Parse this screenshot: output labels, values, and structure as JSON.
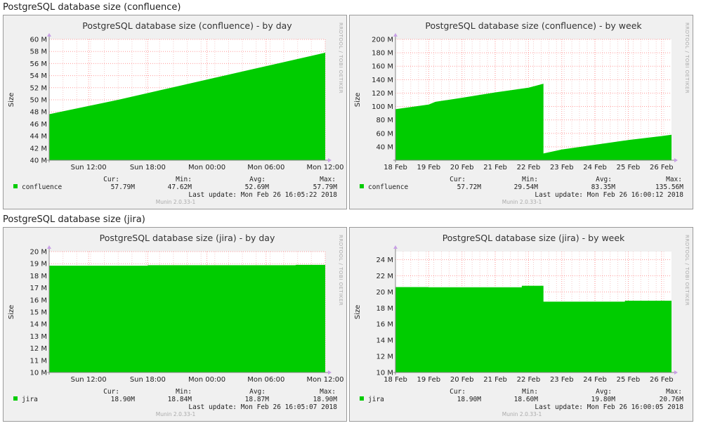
{
  "sections": [
    {
      "title": "PostgreSQL database size (confluence)"
    },
    {
      "title": "PostgreSQL database size (jira)"
    }
  ],
  "common": {
    "ylabel": "Size",
    "side_text": "RRDTOOL / TOBI OETIKER",
    "munin": "Munin 2.0.33-1",
    "colors": {
      "fill": "#00cc00",
      "grid": "#ff9999",
      "panel_bg": "#f0f0f0",
      "plot_bg": "#ffffff"
    }
  },
  "chart_data": [
    {
      "type": "area",
      "title": "PostgreSQL database size (confluence) - by day",
      "xlabel": "",
      "ylabel": "Size",
      "ylim": [
        40,
        60
      ],
      "yticks": [
        40,
        42,
        44,
        46,
        48,
        50,
        52,
        54,
        56,
        58,
        60
      ],
      "ytick_labels": [
        "40 M",
        "42 M",
        "44 M",
        "46 M",
        "48 M",
        "50 M",
        "52 M",
        "54 M",
        "56 M",
        "58 M",
        "60 M"
      ],
      "xlim": [
        0,
        28
      ],
      "xticks": [
        4,
        10,
        16,
        22,
        28
      ],
      "xtick_labels": [
        "Sun 12:00",
        "Sun 18:00",
        "Mon 00:00",
        "Mon 06:00",
        "Mon 12:00"
      ],
      "series": [
        {
          "name": "confluence",
          "x": [
            0,
            7,
            14,
            21,
            28
          ],
          "values": [
            47.62,
            50.0,
            52.6,
            55.2,
            57.79
          ]
        }
      ],
      "legend": {
        "name": "confluence",
        "cur": "57.79M",
        "min": "47.62M",
        "avg": "52.69M",
        "max": "57.79M"
      },
      "last_update": "Mon Feb 26 16:05:22 2018",
      "grid": true
    },
    {
      "type": "area",
      "title": "PostgreSQL database size (confluence) - by week",
      "xlabel": "",
      "ylabel": "Size",
      "ylim": [
        20,
        200
      ],
      "yticks": [
        40,
        60,
        80,
        100,
        120,
        140,
        160,
        180,
        200
      ],
      "ytick_labels": [
        "40 M",
        "60 M",
        "80 M",
        "100 M",
        "120 M",
        "140 M",
        "160 M",
        "180 M",
        "200 M"
      ],
      "xlim": [
        0,
        8.3
      ],
      "xticks": [
        0,
        1,
        2,
        3,
        4,
        5,
        6,
        7,
        8
      ],
      "xtick_labels": [
        "18 Feb",
        "19 Feb",
        "20 Feb",
        "21 Feb",
        "22 Feb",
        "23 Feb",
        "24 Feb",
        "25 Feb",
        "26 Feb"
      ],
      "series": [
        {
          "name": "confluence",
          "x": [
            0,
            1,
            1.2,
            2,
            3,
            4,
            4.45,
            4.45,
            5,
            6,
            7,
            8,
            8.3
          ],
          "values": [
            96,
            103,
            107,
            113,
            121,
            128,
            134,
            30,
            36,
            43,
            50,
            56,
            58
          ]
        }
      ],
      "legend": {
        "name": "confluence",
        "cur": "57.72M",
        "min": "29.54M",
        "avg": "83.35M",
        "max": "135.56M"
      },
      "last_update": "Mon Feb 26 16:00:12 2018",
      "grid": true
    },
    {
      "type": "area",
      "title": "PostgreSQL database size (jira) - by day",
      "xlabel": "",
      "ylabel": "Size",
      "ylim": [
        10,
        20
      ],
      "yticks": [
        10,
        11,
        12,
        13,
        14,
        15,
        16,
        17,
        18,
        19,
        20
      ],
      "ytick_labels": [
        "10 M",
        "11 M",
        "12 M",
        "13 M",
        "14 M",
        "15 M",
        "16 M",
        "17 M",
        "18 M",
        "19 M",
        "20 M"
      ],
      "xlim": [
        0,
        28
      ],
      "xticks": [
        4,
        10,
        16,
        22,
        28
      ],
      "xtick_labels": [
        "Sun 12:00",
        "Sun 18:00",
        "Mon 00:00",
        "Mon 06:00",
        "Mon 12:00"
      ],
      "series": [
        {
          "name": "jira",
          "x": [
            0,
            10,
            10,
            25,
            25,
            30
          ],
          "values": [
            18.84,
            18.84,
            18.87,
            18.87,
            18.9,
            18.9
          ]
        }
      ],
      "legend": {
        "name": "jira",
        "cur": "18.90M",
        "min": "18.84M",
        "avg": "18.87M",
        "max": "18.90M"
      },
      "last_update": "Mon Feb 26 16:05:07 2018",
      "grid": true
    },
    {
      "type": "area",
      "title": "PostgreSQL database size (jira) - by week",
      "xlabel": "",
      "ylabel": "Size",
      "ylim": [
        10,
        25
      ],
      "yticks": [
        10,
        12,
        14,
        16,
        18,
        20,
        22,
        24
      ],
      "ytick_labels": [
        "10 M",
        "12 M",
        "14 M",
        "16 M",
        "18 M",
        "20 M",
        "22 M",
        "24 M"
      ],
      "xlim": [
        0,
        8.3
      ],
      "xticks": [
        0,
        1,
        2,
        3,
        4,
        5,
        6,
        7,
        8
      ],
      "xtick_labels": [
        "18 Feb",
        "19 Feb",
        "20 Feb",
        "21 Feb",
        "22 Feb",
        "23 Feb",
        "24 Feb",
        "25 Feb",
        "26 Feb"
      ],
      "series": [
        {
          "name": "jira",
          "x": [
            0,
            1,
            1,
            3.8,
            3.8,
            4.45,
            4.45,
            6.9,
            6.9,
            8.3
          ],
          "values": [
            20.6,
            20.6,
            20.58,
            20.58,
            20.76,
            20.76,
            18.78,
            18.78,
            18.9,
            18.9
          ]
        }
      ],
      "legend": {
        "name": "jira",
        "cur": "18.90M",
        "min": "18.60M",
        "avg": "19.80M",
        "max": "20.76M"
      },
      "last_update": "Mon Feb 26 16:00:05 2018",
      "grid": true
    }
  ],
  "labels": {
    "cur": "Cur:",
    "min": "Min:",
    "avg": "Avg:",
    "max": "Max:",
    "last_update": "Last update:"
  }
}
